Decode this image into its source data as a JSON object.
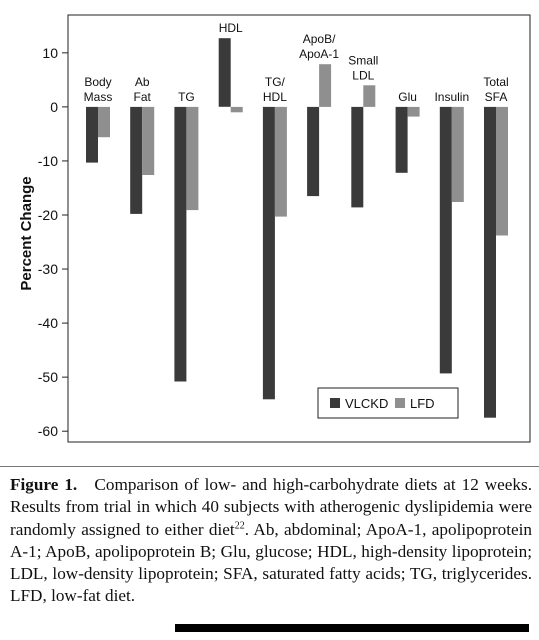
{
  "chart_data": {
    "type": "bar",
    "categories": [
      [
        "Body",
        "Mass"
      ],
      [
        "Ab",
        "Fat"
      ],
      [
        "TG"
      ],
      [
        "HDL"
      ],
      [
        "TG/",
        "HDL"
      ],
      [
        "ApoB/",
        "ApoA-1"
      ],
      [
        "Small",
        "LDL"
      ],
      [
        "Glu"
      ],
      [
        "Insulin"
      ],
      [
        "Total",
        "SFA"
      ]
    ],
    "series": [
      {
        "name": "VLCKD",
        "color": "#3a3a3a",
        "values": [
          -10.3,
          -19.8,
          -50.8,
          12.7,
          -54.1,
          -16.5,
          -18.6,
          -12.2,
          -49.3,
          -57.5
        ]
      },
      {
        "name": "LFD",
        "color": "#8f8f8f",
        "values": [
          -5.6,
          -12.6,
          -19.1,
          -1.0,
          -20.3,
          7.9,
          4.0,
          -1.8,
          -17.6,
          -23.8
        ]
      }
    ],
    "ylabel": "Percent Change",
    "xlabel": "",
    "ylim": [
      -62,
      17
    ],
    "yticks": [
      10,
      0,
      -10,
      -20,
      -30,
      -40,
      -50,
      -60
    ],
    "legend_position": "bottom-right",
    "grid": false
  },
  "caption": {
    "label": "Figure 1.",
    "text_before_sup": "Comparison of low- and high-carbohydrate diets at 12 weeks. Results from trial in which 40 subjects with atherogenic dyslipidemia were randomly assigned to either diet",
    "sup": "22",
    "text_after_sup": ". Ab, abdominal; ApoA-1, apolipoprotein A-1; ApoB, apolipoprotein B; Glu, glucose; HDL, high-density lipoprotein; LDL, low-density lipoprotein; SFA, saturated fatty acids; TG, triglycerides. LFD, low-fat diet."
  }
}
